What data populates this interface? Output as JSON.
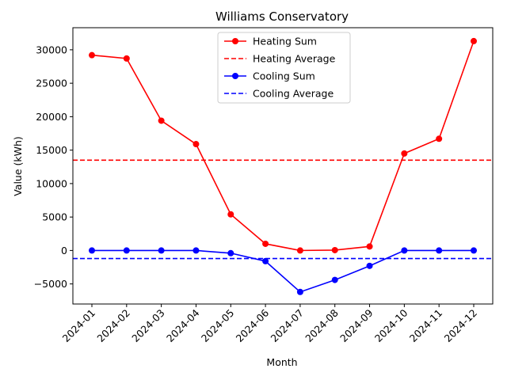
{
  "chart_data": {
    "type": "line",
    "title": "Williams Conservatory",
    "xlabel": "Month",
    "ylabel": "Value (kWh)",
    "categories": [
      "2024-01",
      "2024-02",
      "2024-03",
      "2024-04",
      "2024-05",
      "2024-06",
      "2024-07",
      "2024-08",
      "2024-09",
      "2024-10",
      "2024-11",
      "2024-12"
    ],
    "ylim": [
      -8000,
      33300
    ],
    "yticks": [
      -5000,
      0,
      5000,
      10000,
      15000,
      20000,
      25000,
      30000
    ],
    "grid": false,
    "legend_position": "top-center",
    "series": [
      {
        "name": "Heating Sum",
        "color": "#ff0000",
        "style": "solid",
        "marker": "circle",
        "values": [
          29200,
          28700,
          19400,
          15900,
          5400,
          1000,
          0,
          50,
          600,
          14500,
          16700,
          31300
        ]
      },
      {
        "name": "Cooling Sum",
        "color": "#0000ff",
        "style": "solid",
        "marker": "circle",
        "values": [
          0,
          0,
          0,
          0,
          -400,
          -1600,
          -6200,
          -4400,
          -2300,
          0,
          0,
          0
        ]
      }
    ],
    "reference_lines": [
      {
        "name": "Heating Average",
        "color": "#ff0000",
        "style": "dashed",
        "value": 13500
      },
      {
        "name": "Cooling Average",
        "color": "#0000ff",
        "style": "dashed",
        "value": -1200
      }
    ],
    "legend_order": [
      "Heating Sum",
      "Heating Average",
      "Cooling Sum",
      "Cooling Average"
    ]
  }
}
